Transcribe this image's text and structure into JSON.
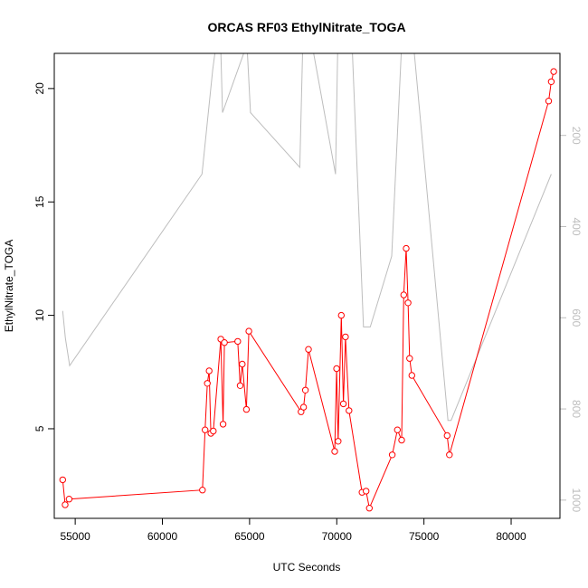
{
  "chart_data": {
    "type": "line",
    "title": "ORCAS RF03 EthylNitrate_TOGA",
    "xlabel": "UTC Seconds",
    "ylabel": "EthylNitrate_TOGA",
    "xlim": [
      53800,
      82800
    ],
    "ylim": [
      1.05,
      21.55
    ],
    "x_ticks": [
      55000,
      60000,
      65000,
      70000,
      75000,
      80000
    ],
    "y_ticks": [
      5,
      10,
      15,
      20
    ],
    "right_axis": {
      "ylim": [
        1040,
        20
      ],
      "ticks": [
        200,
        400,
        600,
        800,
        1000
      ],
      "color": "#bdbdbd",
      "reversed": true
    },
    "series": [
      {
        "color": "#ff0000",
        "marker": "open-circle",
        "x": [
          54280,
          54420,
          54650,
          62300,
          62450,
          62580,
          62680,
          62780,
          62920,
          63350,
          63480,
          63560,
          64320,
          64460,
          64580,
          64820,
          64960,
          67950,
          68100,
          68200,
          68380,
          69880,
          69990,
          70080,
          70260,
          70380,
          70500,
          70700,
          71450,
          71680,
          71870,
          73180,
          73480,
          73720,
          73840,
          73980,
          74090,
          74180,
          74310,
          76330,
          76460,
          82150,
          82300,
          82440
        ],
        "y": [
          2.75,
          1.65,
          1.9,
          2.3,
          4.95,
          7.0,
          7.55,
          4.8,
          4.9,
          8.95,
          5.2,
          8.8,
          8.85,
          6.9,
          7.85,
          5.85,
          9.3,
          5.75,
          5.95,
          6.7,
          8.5,
          4.0,
          7.65,
          4.45,
          10.0,
          6.1,
          9.05,
          5.8,
          2.2,
          2.25,
          1.5,
          3.85,
          4.95,
          4.5,
          10.9,
          12.95,
          10.55,
          8.1,
          7.35,
          4.7,
          3.85,
          19.45,
          20.3,
          20.75
        ]
      },
      {
        "color": "#bdbdbd",
        "axis": "right",
        "x": [
          54280,
          54440,
          54680,
          62270,
          62890,
          63080,
          63340,
          63450,
          64850,
          65050,
          67880,
          68050,
          68580,
          69930,
          70060,
          70450,
          70880,
          71530,
          71920,
          73150,
          73720,
          73800,
          73880,
          74400,
          76380,
          76560,
          82300
        ],
        "y": [
          585,
          645,
          705,
          285,
          55,
          0,
          0,
          150,
          0,
          150,
          270,
          0,
          0,
          285,
          0,
          0,
          0,
          620,
          620,
          465,
          0,
          0,
          0,
          0,
          825,
          825,
          285
        ]
      }
    ]
  }
}
